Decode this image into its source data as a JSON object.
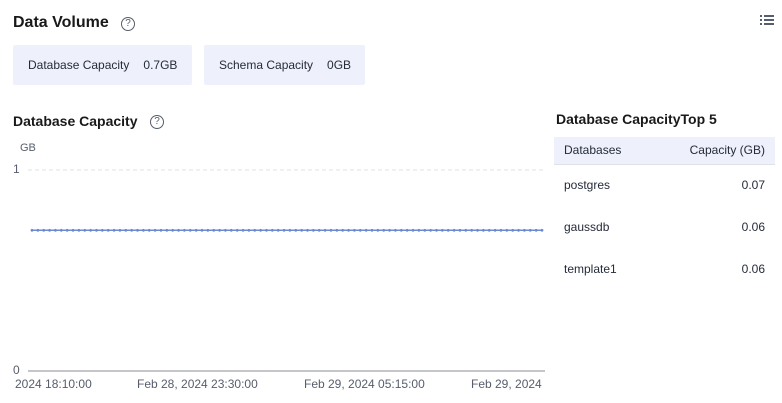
{
  "header": {
    "title": "Data Volume",
    "help": "?"
  },
  "cards": [
    {
      "label": "Database Capacity",
      "value": "0.7GB"
    },
    {
      "label": "Schema Capacity",
      "value": "0GB"
    }
  ],
  "section": {
    "title": "Database Capacity",
    "help": "?"
  },
  "chart_data": {
    "type": "line",
    "ylabel": "GB",
    "ylim": [
      0,
      1
    ],
    "yticks": [
      "1",
      "0"
    ],
    "xticks": [
      "2024 18:10:00",
      "Feb 28, 2024 23:30:00",
      "Feb 29, 2024 05:15:00",
      "Feb 29, 2024"
    ],
    "series": [
      {
        "values": [
          0.7,
          0.7,
          0.7,
          0.7,
          0.7,
          0.7,
          0.7,
          0.7,
          0.7,
          0.7,
          0.7,
          0.7,
          0.7,
          0.7,
          0.7,
          0.7,
          0.7,
          0.7,
          0.7,
          0.7,
          0.7,
          0.7,
          0.7,
          0.7,
          0.7,
          0.7,
          0.7,
          0.7,
          0.7,
          0.7,
          0.7,
          0.7,
          0.7,
          0.7,
          0.7,
          0.7,
          0.7,
          0.7,
          0.7,
          0.7,
          0.7,
          0.7,
          0.7,
          0.7,
          0.7,
          0.7,
          0.7,
          0.7,
          0.7,
          0.7,
          0.7,
          0.7,
          0.7,
          0.7,
          0.7,
          0.7,
          0.7,
          0.7,
          0.7,
          0.7,
          0.7,
          0.7,
          0.7,
          0.7,
          0.7,
          0.7,
          0.7,
          0.7,
          0.7,
          0.7,
          0.7,
          0.7,
          0.7,
          0.7,
          0.7,
          0.7,
          0.7,
          0.7,
          0.7,
          0.7,
          0.7,
          0.7,
          0.7,
          0.7,
          0.7,
          0.7,
          0.7,
          0.7
        ]
      }
    ],
    "color": "#6a8bd1",
    "grid": true
  },
  "top5": {
    "title": "Database CapacityTop 5",
    "columns": [
      "Databases",
      "Capacity (GB)"
    ],
    "rows": [
      {
        "name": "postgres",
        "value": "0.07"
      },
      {
        "name": "gaussdb",
        "value": "0.06"
      },
      {
        "name": "template1",
        "value": "0.06"
      }
    ]
  }
}
